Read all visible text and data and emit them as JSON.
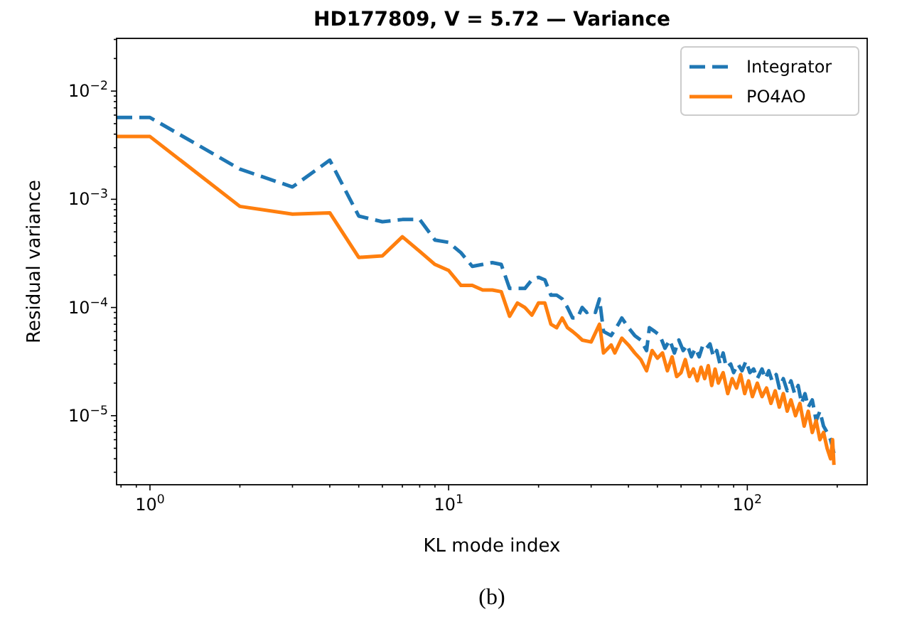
{
  "chart_data": {
    "type": "line",
    "title": "HD177809, V = 5.72 — Variance",
    "xlabel": "KL mode index",
    "ylabel": "Residual variance",
    "log": "xy",
    "legend": "top right",
    "grid": false,
    "xlim": [
      0.773,
      252
    ],
    "ylim": [
      2.3e-06,
      0.0307
    ],
    "xticks": [
      {
        "value": 1,
        "label": "10$^{0}$"
      },
      {
        "value": 10,
        "label": "10$^{1}$"
      },
      {
        "value": 100,
        "label": "10$^{2}$"
      },
      {
        "value": 0.8,
        "label": null
      },
      {
        "value": 0.9,
        "label": null
      },
      {
        "value": 2,
        "label": null
      },
      {
        "value": 3,
        "label": null
      },
      {
        "value": 4,
        "label": null
      },
      {
        "value": 5,
        "label": null
      },
      {
        "value": 6,
        "label": null
      },
      {
        "value": 7,
        "label": null
      },
      {
        "value": 8,
        "label": null
      },
      {
        "value": 9,
        "label": null
      },
      {
        "value": 20,
        "label": null
      },
      {
        "value": 30,
        "label": null
      },
      {
        "value": 40,
        "label": null
      },
      {
        "value": 50,
        "label": null
      },
      {
        "value": 60,
        "label": null
      },
      {
        "value": 70,
        "label": null
      },
      {
        "value": 80,
        "label": null
      },
      {
        "value": 90,
        "label": null
      },
      {
        "value": 200,
        "label": null
      }
    ],
    "yticks": [
      {
        "value": 1e-05,
        "label": "10$^{−5}$"
      },
      {
        "value": 0.0001,
        "label": "10$^{−4}$"
      },
      {
        "value": 0.001,
        "label": "10$^{−3}$"
      },
      {
        "value": 0.01,
        "label": "10$^{−2}$"
      },
      {
        "value": 3e-06,
        "label": null
      },
      {
        "value": 4e-06,
        "label": null
      },
      {
        "value": 5e-06,
        "label": null
      },
      {
        "value": 6e-06,
        "label": null
      },
      {
        "value": 7e-06,
        "label": null
      },
      {
        "value": 8e-06,
        "label": null
      },
      {
        "value": 9e-06,
        "label": null
      },
      {
        "value": 2e-05,
        "label": null
      },
      {
        "value": 3e-05,
        "label": null
      },
      {
        "value": 4e-05,
        "label": null
      },
      {
        "value": 5e-05,
        "label": null
      },
      {
        "value": 6e-05,
        "label": null
      },
      {
        "value": 7e-05,
        "label": null
      },
      {
        "value": 8e-05,
        "label": null
      },
      {
        "value": 9e-05,
        "label": null
      },
      {
        "value": 0.0002,
        "label": null
      },
      {
        "value": 0.0003,
        "label": null
      },
      {
        "value": 0.0004,
        "label": null
      },
      {
        "value": 0.0005,
        "label": null
      },
      {
        "value": 0.0006,
        "label": null
      },
      {
        "value": 0.0007,
        "label": null
      },
      {
        "value": 0.0008,
        "label": null
      },
      {
        "value": 0.0009,
        "label": null
      },
      {
        "value": 0.002,
        "label": null
      },
      {
        "value": 0.003,
        "label": null
      },
      {
        "value": 0.004,
        "label": null
      },
      {
        "value": 0.005,
        "label": null
      },
      {
        "value": 0.006,
        "label": null
      },
      {
        "value": 0.007,
        "label": null
      },
      {
        "value": 0.008,
        "label": null
      },
      {
        "value": 0.009,
        "label": null
      },
      {
        "value": 0.02,
        "label": null
      },
      {
        "value": 0.03,
        "label": null
      }
    ],
    "series": [
      {
        "name": "Integrator",
        "color": "#1f77b4",
        "line_style": "dashed",
        "x": [
          0.773,
          1,
          2,
          3,
          4,
          5,
          6,
          7,
          8,
          9,
          10,
          11,
          12,
          13,
          14,
          15,
          16,
          17,
          18,
          19,
          20,
          21,
          22,
          23,
          24,
          25,
          26,
          27,
          28,
          29,
          30,
          31,
          32,
          33,
          35,
          37,
          38,
          40,
          42,
          44,
          46,
          47,
          49,
          51,
          53,
          55,
          57,
          59,
          61,
          63,
          65,
          67,
          69,
          71,
          73,
          75,
          77,
          79,
          81,
          83,
          85,
          88,
          90,
          93,
          96,
          99,
          102,
          105,
          108,
          112,
          115,
          118,
          121,
          125,
          128,
          132,
          136,
          140,
          144,
          148,
          152,
          156,
          160,
          165,
          170,
          175,
          180,
          185,
          190,
          195
        ],
        "values": [
          0.0057,
          0.0057,
          0.0019,
          0.0013,
          0.0023,
          0.0007,
          0.00062,
          0.00065,
          0.00065,
          0.00042,
          0.0004,
          0.00032,
          0.00024,
          0.00025,
          0.00026,
          0.00025,
          0.00015,
          0.00015,
          0.00015,
          0.00018,
          0.00019,
          0.00018,
          0.00013,
          0.00013,
          0.00012,
          0.0001,
          8e-05,
          8e-05,
          0.0001,
          9e-05,
          9.5e-05,
          9e-05,
          0.00012,
          6e-05,
          5.5e-05,
          7e-05,
          8e-05,
          6.5e-05,
          5.5e-05,
          5e-05,
          4e-05,
          6.5e-05,
          6e-05,
          5.5e-05,
          4.2e-05,
          5e-05,
          3.8e-05,
          5e-05,
          4e-05,
          4.5e-05,
          3.5e-05,
          4.2e-05,
          3.5e-05,
          4.5e-05,
          4.2e-05,
          4.6e-05,
          3.5e-05,
          4e-05,
          3e-05,
          3.8e-05,
          2.8e-05,
          3e-05,
          2.5e-05,
          3e-05,
          2.6e-05,
          3.2e-05,
          2.5e-05,
          2.7e-05,
          2.2e-05,
          2.7e-05,
          2.2e-05,
          2.6e-05,
          2.1e-05,
          2.4e-05,
          1.8e-05,
          2.2e-05,
          1.7e-05,
          2.1e-05,
          1.6e-05,
          1.9e-05,
          1.3e-05,
          1.6e-05,
          1.2e-05,
          1.4e-05,
          9e-06,
          1.1e-05,
          8e-06,
          7e-06,
          6e-06,
          4.5e-06
        ]
      },
      {
        "name": "PO4AO",
        "color": "#ff7f0e",
        "line_style": "solid",
        "x": [
          0.773,
          1,
          2,
          3,
          4,
          5,
          6,
          7,
          8,
          9,
          10,
          11,
          12,
          13,
          14,
          15,
          16,
          17,
          18,
          19,
          20,
          21,
          22,
          23,
          24,
          25,
          26,
          27,
          28,
          30,
          32,
          33,
          35,
          36,
          38,
          40,
          42,
          44,
          46,
          48,
          50,
          52,
          54,
          56,
          58,
          60,
          62,
          64,
          66,
          68,
          70,
          72,
          74,
          76,
          78,
          80,
          83,
          86,
          89,
          92,
          95,
          98,
          101,
          104,
          108,
          112,
          116,
          120,
          124,
          128,
          132,
          136,
          140,
          145,
          150,
          155,
          160,
          165,
          170,
          175,
          180,
          185,
          190,
          193,
          195
        ],
        "values": [
          0.0038,
          0.0038,
          0.00086,
          0.00073,
          0.00075,
          0.00029,
          0.0003,
          0.00045,
          0.00033,
          0.00025,
          0.00022,
          0.00016,
          0.00016,
          0.000145,
          0.000145,
          0.00014,
          8.3e-05,
          0.00011,
          0.0001,
          8.5e-05,
          0.00011,
          0.00011,
          7e-05,
          6.5e-05,
          8e-05,
          6.5e-05,
          6e-05,
          5.5e-05,
          5e-05,
          4.8e-05,
          7e-05,
          3.8e-05,
          4.5e-05,
          3.8e-05,
          5.2e-05,
          4.5e-05,
          3.8e-05,
          3.3e-05,
          2.6e-05,
          4e-05,
          3.4e-05,
          3.8e-05,
          2.6e-05,
          3.5e-05,
          2.3e-05,
          2.5e-05,
          3.3e-05,
          2.3e-05,
          2.7e-05,
          2.1e-05,
          2.8e-05,
          2.2e-05,
          2.9e-05,
          1.9e-05,
          2.7e-05,
          2e-05,
          2.5e-05,
          1.6e-05,
          2.2e-05,
          1.8e-05,
          2.4e-05,
          1.6e-05,
          2.1e-05,
          1.5e-05,
          2e-05,
          1.5e-05,
          1.8e-05,
          1.3e-05,
          1.7e-05,
          1.2e-05,
          1.6e-05,
          1.1e-05,
          1.4e-05,
          1e-05,
          1.3e-05,
          8e-06,
          1.1e-05,
          7e-06,
          9e-06,
          6e-06,
          7e-06,
          5e-06,
          4e-06,
          6e-06,
          3.5e-06
        ]
      }
    ],
    "annotations": [
      "(b)"
    ]
  }
}
